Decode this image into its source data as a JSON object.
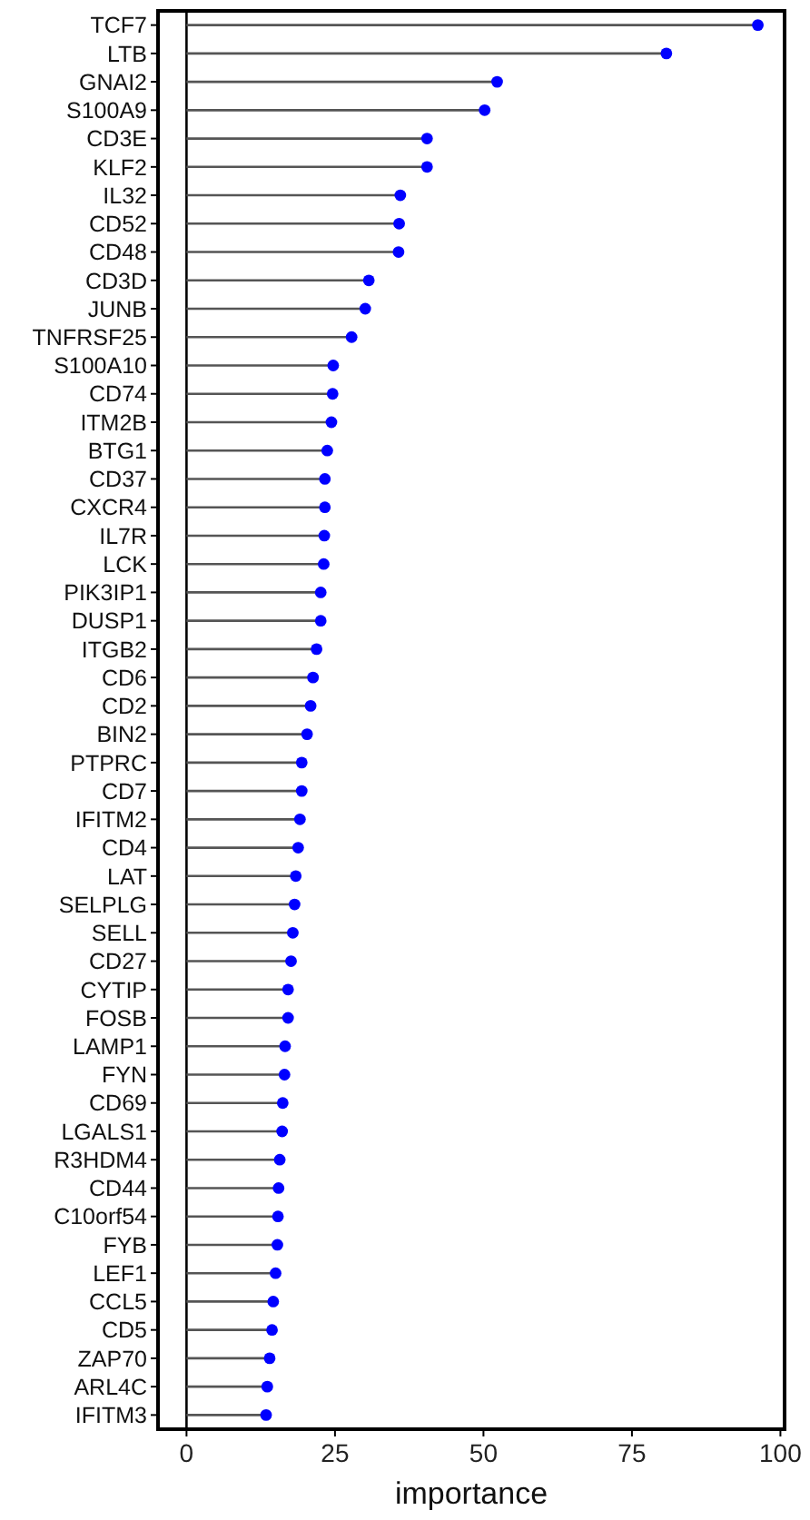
{
  "chart_data": {
    "type": "lollipop",
    "orientation": "horizontal",
    "xlabel": "importance",
    "categories": [
      "TCF7",
      "LTB",
      "GNAI2",
      "S100A9",
      "CD3E",
      "KLF2",
      "IL32",
      "CD52",
      "CD48",
      "CD3D",
      "JUNB",
      "TNFRSF25",
      "S100A10",
      "CD74",
      "ITM2B",
      "BTG1",
      "CD37",
      "CXCR4",
      "IL7R",
      "LCK",
      "PIK3IP1",
      "DUSP1",
      "ITGB2",
      "CD6",
      "CD2",
      "BIN2",
      "PTPRC",
      "CD7",
      "IFITM2",
      "CD4",
      "LAT",
      "SELPLG",
      "SELL",
      "CD27",
      "CYTIP",
      "FOSB",
      "LAMP1",
      "FYN",
      "CD69",
      "LGALS1",
      "R3HDM4",
      "CD44",
      "C10orf54",
      "FYB",
      "LEF1",
      "CCL5",
      "CD5",
      "ZAP70",
      "ARL4C",
      "IFITM3"
    ],
    "values": [
      96.2,
      80.8,
      52.3,
      50.2,
      40.5,
      40.5,
      36.0,
      35.8,
      35.7,
      30.7,
      30.1,
      27.8,
      24.7,
      24.6,
      24.4,
      23.7,
      23.3,
      23.3,
      23.2,
      23.1,
      22.6,
      22.6,
      21.9,
      21.3,
      20.9,
      20.3,
      19.4,
      19.4,
      19.1,
      18.8,
      18.4,
      18.2,
      17.9,
      17.6,
      17.1,
      17.1,
      16.6,
      16.5,
      16.2,
      16.1,
      15.7,
      15.5,
      15.4,
      15.3,
      15.0,
      14.6,
      14.4,
      14.0,
      13.6,
      13.4
    ],
    "color": "#0000ff",
    "marker": "circle",
    "xlim": [
      -4.8,
      100.7
    ],
    "xticks": [
      0,
      25,
      50,
      75,
      100
    ],
    "ref_lines": [
      {
        "axis": "x",
        "value": 0,
        "color": "#000000"
      }
    ],
    "grid": false
  }
}
